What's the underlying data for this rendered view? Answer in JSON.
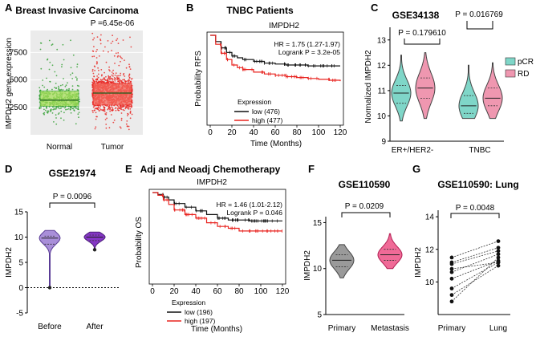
{
  "chart_data": [
    {
      "panel": "A",
      "type": "jitter_box",
      "title": "Breast Invasive Carcinoma",
      "pvalue": "P =6.45e-06",
      "ylabel": "IMPDH2 gene expression",
      "yticks": [
        "2500",
        "5000",
        "7500"
      ],
      "ylim": [
        0,
        9500
      ],
      "groups": [
        {
          "name": "Normal",
          "color": "#2e9e2e",
          "q1": 2600,
          "median": 3150,
          "q3": 4000,
          "min": 800,
          "max": 8800,
          "n": 114
        },
        {
          "name": "Tumor",
          "color": "#e8231f",
          "q1": 2700,
          "median": 3800,
          "q3": 4700,
          "min": 300,
          "max": 9300,
          "n": 1097
        }
      ]
    },
    {
      "panel": "B",
      "type": "km",
      "title": "TNBC Patients",
      "subtitle": "IMPDH2",
      "hr": "HR = 1.75 (1.27-1.97)",
      "logrank": "Logrank P = 3.2e-05",
      "ylabel": "Probability RFS",
      "xlabel": "Time (Months)",
      "xticks": [
        0,
        20,
        40,
        60,
        80,
        100,
        120
      ],
      "yticks": [
        "0.0",
        "0.2",
        "0.4",
        "0.6",
        "0.8",
        "1.0"
      ],
      "legend_title": "Expression",
      "series": [
        {
          "name": "low (476)",
          "color": "#111111",
          "t": [
            0,
            5,
            10,
            15,
            20,
            25,
            30,
            40,
            50,
            60,
            70,
            80,
            90,
            100,
            110,
            120
          ],
          "s": [
            1.0,
            0.93,
            0.86,
            0.81,
            0.77,
            0.75,
            0.73,
            0.71,
            0.69,
            0.68,
            0.67,
            0.67,
            0.66,
            0.66,
            0.66,
            0.66
          ]
        },
        {
          "name": "high (477)",
          "color": "#e8231f",
          "t": [
            0,
            5,
            10,
            15,
            20,
            25,
            30,
            40,
            50,
            60,
            70,
            80,
            90,
            100,
            110,
            120
          ],
          "s": [
            1.0,
            0.9,
            0.8,
            0.73,
            0.67,
            0.64,
            0.62,
            0.59,
            0.57,
            0.555,
            0.54,
            0.53,
            0.52,
            0.51,
            0.5,
            0.49
          ]
        }
      ]
    },
    {
      "panel": "C",
      "type": "violin",
      "title": "GSE34138",
      "ylabel": "Normalized IMPDH2",
      "yticks": [
        "9",
        "10",
        "11",
        "12",
        "13"
      ],
      "ylim": [
        9,
        13.5
      ],
      "categories": [
        "ER+/HER2-",
        "TNBC"
      ],
      "pvalues": [
        "P = 0.179610",
        "P = 0.016769"
      ],
      "legend": [
        {
          "name": "pCR",
          "color": "#7fd6c8"
        },
        {
          "name": "RD",
          "color": "#ef97b0"
        }
      ],
      "groups": [
        {
          "category": "ER+/HER2-",
          "series": "pCR",
          "median": 10.9,
          "q1": 10.5,
          "q3": 11.2,
          "min": 9.8,
          "max": 12.4
        },
        {
          "category": "ER+/HER2-",
          "series": "RD",
          "median": 11.1,
          "q1": 10.7,
          "q3": 11.5,
          "min": 9.9,
          "max": 12.5
        },
        {
          "category": "TNBC",
          "series": "pCR",
          "median": 10.4,
          "q1": 10.1,
          "q3": 10.8,
          "min": 9.9,
          "max": 12.0
        },
        {
          "category": "TNBC",
          "series": "RD",
          "median": 10.7,
          "q1": 10.4,
          "q3": 11.1,
          "min": 9.9,
          "max": 12.1
        }
      ]
    },
    {
      "panel": "D",
      "type": "violin",
      "title": "GSE21974",
      "pvalue": "P = 0.0096",
      "ylabel": "IMPDH2",
      "yticks": [
        "-5",
        "0",
        "5",
        "10",
        "15"
      ],
      "ylim": [
        -5,
        15
      ],
      "categories": [
        "Before",
        "After"
      ],
      "groups": [
        {
          "name": "Before",
          "color": "#a98fd9",
          "median": 9.8,
          "q1": 8.6,
          "q3": 10.2,
          "min": 0.0,
          "max": 11.3
        },
        {
          "name": "After",
          "color": "#8436c4",
          "median": 10.0,
          "q1": 9.3,
          "q3": 10.4,
          "min": 7.5,
          "max": 11.0
        }
      ]
    },
    {
      "panel": "E",
      "type": "km",
      "title": "Adj and Neoadj Chemotherapy",
      "subtitle": "IMPDH2",
      "hr": "HR = 1.46 (1.01-2.12)",
      "logrank": "Logrank P = 0.046",
      "ylabel": "Probability OS",
      "xlabel": "Time (Months)",
      "xticks": [
        0,
        20,
        40,
        60,
        80,
        100,
        120
      ],
      "yticks": [
        "0.0",
        "0.2",
        "0.4",
        "0.6",
        "0.8",
        "1.0"
      ],
      "legend_title": "Expression",
      "series": [
        {
          "name": "low (196)",
          "color": "#111111",
          "t": [
            0,
            5,
            10,
            15,
            20,
            30,
            40,
            50,
            60,
            70,
            80,
            90,
            100,
            110,
            120
          ],
          "s": [
            1.0,
            0.98,
            0.95,
            0.92,
            0.88,
            0.84,
            0.8,
            0.76,
            0.72,
            0.7,
            0.7,
            0.69,
            0.69,
            0.69,
            0.69
          ]
        },
        {
          "name": "high (197)",
          "color": "#e8231f",
          "t": [
            0,
            5,
            10,
            15,
            20,
            30,
            40,
            50,
            60,
            70,
            80,
            90,
            100,
            110,
            120
          ],
          "s": [
            1.0,
            0.97,
            0.92,
            0.87,
            0.81,
            0.76,
            0.72,
            0.67,
            0.63,
            0.61,
            0.58,
            0.58,
            0.58,
            0.58,
            0.58
          ]
        }
      ]
    },
    {
      "panel": "F",
      "type": "violin",
      "title": "GSE110590",
      "pvalue": "P = 0.0209",
      "ylabel": "IMPDH2",
      "yticks": [
        "5",
        "10",
        "15"
      ],
      "ylim": [
        5,
        16
      ],
      "categories": [
        "Primary",
        "Metastasis"
      ],
      "groups": [
        {
          "name": "Primary",
          "color": "#6e6e6e",
          "median": 10.9,
          "q1": 10.2,
          "q3": 11.5,
          "min": 9.0,
          "max": 12.6
        },
        {
          "name": "Metastasis",
          "color": "#ee3d7a",
          "median": 11.5,
          "q1": 10.9,
          "q3": 12.1,
          "min": 10.0,
          "max": 13.8
        }
      ]
    },
    {
      "panel": "G",
      "type": "paired",
      "title": "GSE110590: Lung",
      "pvalue": "P = 0.0048",
      "ylabel": "IMPDH2",
      "yticks": [
        "10",
        "12",
        "14"
      ],
      "ylim": [
        8,
        14.4
      ],
      "categories": [
        "Primary",
        "Lung"
      ],
      "pairs": [
        [
          11.5,
          12.5
        ],
        [
          11.2,
          12.1
        ],
        [
          11.1,
          11.9
        ],
        [
          10.8,
          11.2
        ],
        [
          10.6,
          11.7
        ],
        [
          10.2,
          11.3
        ],
        [
          9.6,
          11.2
        ],
        [
          9.2,
          11.0
        ],
        [
          8.8,
          11.5
        ]
      ]
    }
  ]
}
